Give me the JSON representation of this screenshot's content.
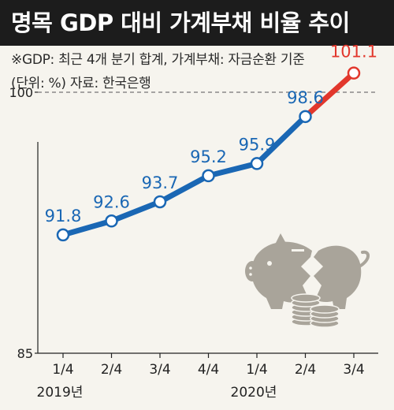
{
  "header": {
    "title": "명목 GDP 대비 가계부채 비율 추이",
    "note_line1": "※GDP: 최근 4개 분기 합계, 가계부채: 자금순환 기준",
    "note_line2": "(단위: %)  자료: 한국은행"
  },
  "colors": {
    "line": "#1a67b4",
    "highlight": "#e2372c",
    "background": "#f6f4ee",
    "title_bar": "#1c1c1c",
    "illustration": "#a9a49a"
  },
  "illustration": {
    "icon": "broken-piggy-bank-with-coins"
  },
  "chart_data": {
    "type": "line",
    "categories": [
      "1/4",
      "2/4",
      "3/4",
      "4/4",
      "1/4",
      "2/4",
      "3/4"
    ],
    "year_labels": [
      {
        "index": 0,
        "text": "2019년"
      },
      {
        "index": 4,
        "text": "2020년"
      }
    ],
    "values": [
      91.8,
      92.6,
      93.7,
      95.2,
      95.9,
      98.6,
      101.1
    ],
    "data_labels": [
      "91.8",
      "92.6",
      "93.7",
      "95.2",
      "95.9",
      "98.6",
      "101.1"
    ],
    "highlight_index": 6,
    "reference_line": {
      "value": 100,
      "label": "100",
      "style": "dashed"
    },
    "ylim": [
      85,
      102.5
    ],
    "yticks": [
      "85",
      "100"
    ],
    "title": "명목 GDP 대비 가계부채 비율 추이",
    "xlabel": "",
    "ylabel": "",
    "grid": false
  }
}
